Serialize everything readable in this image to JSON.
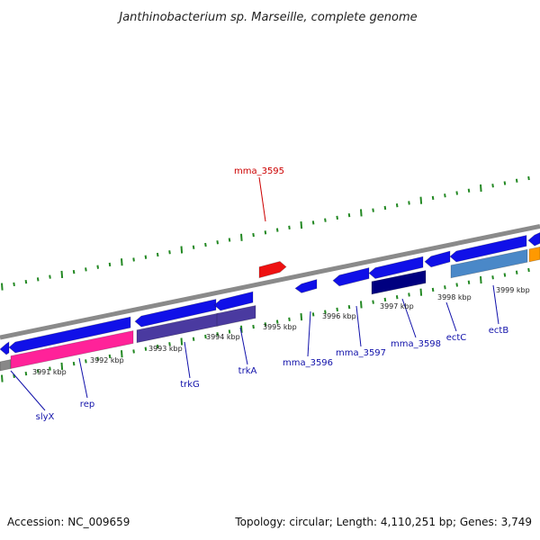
{
  "title": "Janthinobacterium sp. Marseille, complete genome",
  "footer": {
    "accession": "Accession: NC_009659",
    "summary": "Topology: circular; Length: 4,110,251 bp; Genes: 3,749"
  },
  "colors": {
    "backbone": "#8a8a8a",
    "forward_gene": "#1010e8",
    "highlighted_gene": "#ee1111",
    "label_default": "#1111aa",
    "label_highlight": "#cc0000",
    "tick": "#228822",
    "rep_track": "#ff2299",
    "trk_track": "#4a3aa0",
    "mma3598_track": "#000080",
    "ect_track": "#4a88c8",
    "orange_track": "#ff9900"
  },
  "scale_labels": [
    "3991 kbp",
    "3992 kbp",
    "3993 kbp",
    "3994 kbp",
    "3995 kbp",
    "3996 kbp",
    "3997 kbp",
    "3998 kbp",
    "3999 kbp"
  ],
  "gene_labels": [
    {
      "text": "slyX",
      "highlight": false
    },
    {
      "text": "rep",
      "highlight": false
    },
    {
      "text": "trkG",
      "highlight": false
    },
    {
      "text": "trkA",
      "highlight": false
    },
    {
      "text": "mma_3595",
      "highlight": true
    },
    {
      "text": "mma_3596",
      "highlight": false
    },
    {
      "text": "mma_3597",
      "highlight": false
    },
    {
      "text": "mma_3598",
      "highlight": false
    },
    {
      "text": "ectC",
      "highlight": false
    },
    {
      "text": "ectB",
      "highlight": false
    }
  ]
}
